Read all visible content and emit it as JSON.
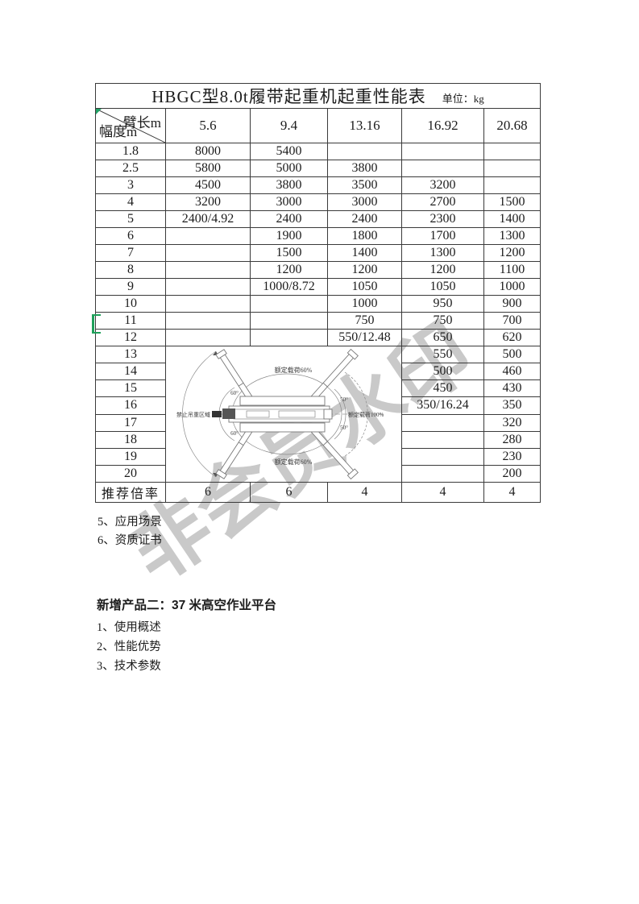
{
  "watermark": "非会员水印",
  "table": {
    "title": "HBGC型8.0t履带起重机起重性能表",
    "unit_label": "单位：kg",
    "corner": {
      "top_right": "臂长m",
      "bottom_left": "幅度m"
    },
    "arm_lengths": [
      "5.6",
      "9.4",
      "13.16",
      "16.92",
      "20.68"
    ],
    "rows": [
      {
        "radius": "1.8",
        "values": [
          "8000",
          "5400",
          "",
          "",
          ""
        ]
      },
      {
        "radius": "2.5",
        "values": [
          "5800",
          "5000",
          "3800",
          "",
          ""
        ]
      },
      {
        "radius": "3",
        "values": [
          "4500",
          "3800",
          "3500",
          "3200",
          ""
        ]
      },
      {
        "radius": "4",
        "values": [
          "3200",
          "3000",
          "3000",
          "2700",
          "1500"
        ]
      },
      {
        "radius": "5",
        "values": [
          "2400/4.92",
          "2400",
          "2400",
          "2300",
          "1400"
        ]
      },
      {
        "radius": "6",
        "values": [
          "",
          "1900",
          "1800",
          "1700",
          "1300"
        ]
      },
      {
        "radius": "7",
        "values": [
          "",
          "1500",
          "1400",
          "1300",
          "1200"
        ]
      },
      {
        "radius": "8",
        "values": [
          "",
          "1200",
          "1200",
          "1200",
          "1100"
        ]
      },
      {
        "radius": "9",
        "values": [
          "",
          "1000/8.72",
          "1050",
          "1050",
          "1000"
        ]
      },
      {
        "radius": "10",
        "values": [
          "",
          "",
          "1000",
          "950",
          "900"
        ]
      },
      {
        "radius": "11",
        "values": [
          "",
          "",
          "750",
          "750",
          "700"
        ]
      },
      {
        "radius": "12",
        "values": [
          "",
          "",
          "550/12.48",
          "650",
          "620"
        ]
      },
      {
        "radius": "13",
        "values": [
          null,
          null,
          null,
          "550",
          "500"
        ]
      },
      {
        "radius": "14",
        "values": [
          null,
          null,
          null,
          "500",
          "460"
        ]
      },
      {
        "radius": "15",
        "values": [
          null,
          null,
          null,
          "450",
          "430"
        ]
      },
      {
        "radius": "16",
        "values": [
          null,
          null,
          null,
          "350/16.24",
          "350"
        ]
      },
      {
        "radius": "17",
        "values": [
          null,
          null,
          null,
          "",
          "320"
        ]
      },
      {
        "radius": "18",
        "values": [
          null,
          null,
          null,
          "",
          "280"
        ]
      },
      {
        "radius": "19",
        "values": [
          null,
          null,
          null,
          "",
          "230"
        ]
      },
      {
        "radius": "20",
        "values": [
          null,
          null,
          null,
          "",
          "200"
        ]
      }
    ],
    "footer": {
      "label": "推荐倍率",
      "values": [
        "6",
        "6",
        "4",
        "4",
        "4"
      ]
    }
  },
  "diagram": {
    "labels": {
      "top": "额定载荷60%",
      "right": "额定载荷100%",
      "bottom": "额定载荷60%",
      "left": "禁止吊重区域",
      "angle_upper_left": "60°",
      "angle_lower_left": "60°",
      "angle_upper_right": "50°",
      "angle_lower_right": "50°"
    }
  },
  "notes_after_table": [
    "5、应用场景",
    "6、资质证书"
  ],
  "section2": {
    "heading": "新增产品二：37 米高空作业平台",
    "items": [
      "1、使用概述",
      "2、性能优势",
      "3、技术参数"
    ]
  },
  "colors": {
    "selection_green": "#1fa05a",
    "comment_flag_green": "#21a366",
    "watermark_gray": "#c9c9c9"
  }
}
